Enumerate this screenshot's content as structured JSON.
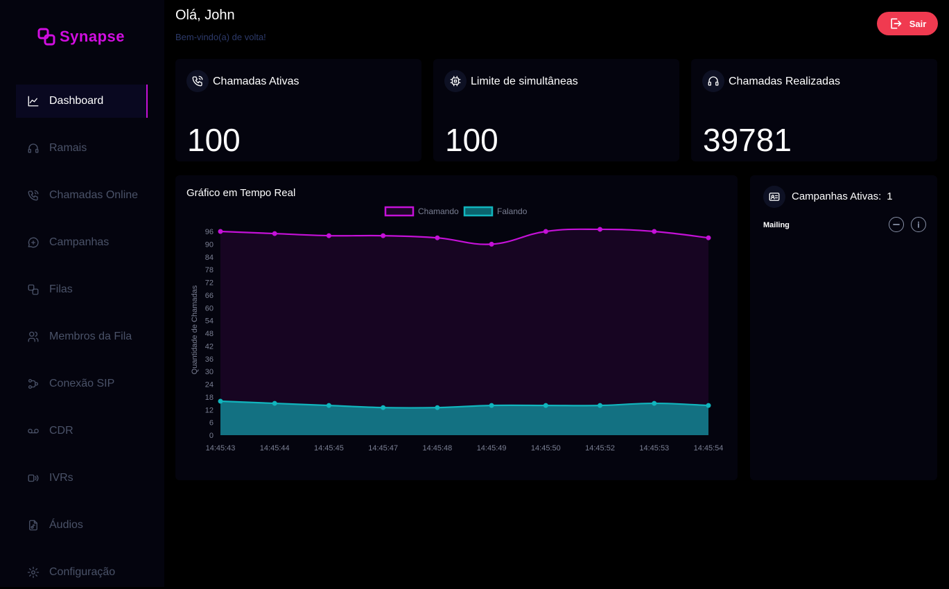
{
  "brand": {
    "name": "Synapse",
    "logo_icon": "synapse-logo-icon",
    "color": "#d10ee0"
  },
  "sidebar": {
    "items": [
      {
        "label": "Dashboard",
        "icon": "chart-icon",
        "active": true
      },
      {
        "label": "Ramais",
        "icon": "headset-icon"
      },
      {
        "label": "Chamadas Online",
        "icon": "phone-call-icon"
      },
      {
        "label": "Campanhas",
        "icon": "message-plus-icon"
      },
      {
        "label": "Filas",
        "icon": "queue-icon"
      },
      {
        "label": "Membros da Fila",
        "icon": "users-icon"
      },
      {
        "label": "Conexão SIP",
        "icon": "network-icon"
      },
      {
        "label": "CDR",
        "icon": "voicemail-icon"
      },
      {
        "label": "IVRs",
        "icon": "ivr-icon"
      },
      {
        "label": "Áudios",
        "icon": "audio-file-icon"
      },
      {
        "label": "Configuração",
        "icon": "gear-icon"
      }
    ]
  },
  "header": {
    "greeting": "Olá, John",
    "subtitle": "Bem-vindo(a) de volta!",
    "logout_label": "Sair"
  },
  "stats": [
    {
      "label": "Chamadas Ativas",
      "value": "100",
      "icon": "phone-call-icon"
    },
    {
      "label": "Limite de simultâneas",
      "value": "100",
      "icon": "cpu-icon"
    },
    {
      "label": "Chamadas Realizadas",
      "value": "39781",
      "icon": "headset-icon"
    }
  ],
  "chart": {
    "title": "Gráfico em Tempo Real",
    "y_axis_label": "Quantidade de Chamadas"
  },
  "chart_data": {
    "type": "area",
    "categories": [
      "14:45:43",
      "14:45:44",
      "14:45:45",
      "14:45:47",
      "14:45:48",
      "14:45:49",
      "14:45:50",
      "14:45:52",
      "14:45:53",
      "14:45:54"
    ],
    "series": [
      {
        "name": "Chamando",
        "color": "#c511d8",
        "values": [
          96,
          95,
          94,
          94,
          93,
          90,
          96,
          97,
          96,
          93
        ]
      },
      {
        "name": "Falando",
        "color": "#11b5bd",
        "values": [
          16,
          15,
          14,
          13,
          13,
          14,
          14,
          14,
          15,
          14
        ]
      }
    ],
    "ylabel": "Quantidade de Chamadas",
    "ylim": [
      0,
      96
    ],
    "yticks": [
      0,
      6,
      12,
      18,
      24,
      30,
      36,
      42,
      48,
      54,
      60,
      66,
      72,
      78,
      84,
      90,
      96
    ],
    "legend": "top-center",
    "grid": false
  },
  "campaigns": {
    "title": "Campanhas Ativas:",
    "count": "1",
    "icon": "contact-card-icon",
    "items": [
      {
        "name": "Mailing"
      }
    ]
  }
}
